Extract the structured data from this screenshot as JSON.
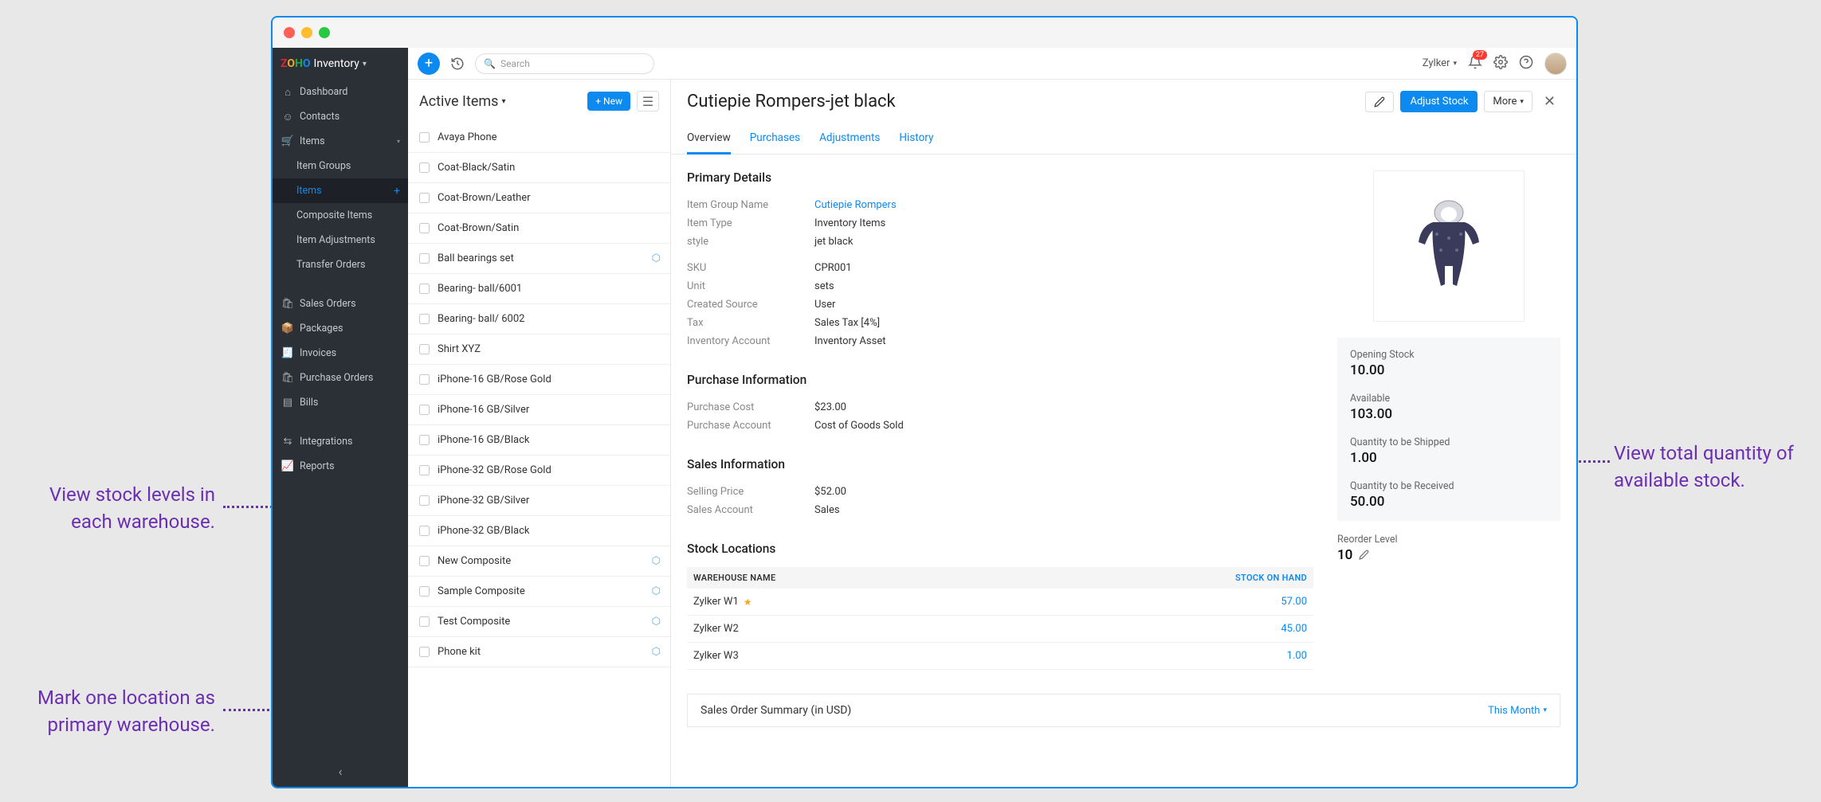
{
  "annotations": {
    "left1": "View stock levels in each warehouse.",
    "left2": "Mark one location as primary warehouse.",
    "right1": "View total quantity of available stock."
  },
  "brand": {
    "name": "Inventory"
  },
  "sidebar": {
    "dashboard": "Dashboard",
    "contacts": "Contacts",
    "items": "Items",
    "item_groups": "Item Groups",
    "items_sub": "Items",
    "composite": "Composite Items",
    "adjustments": "Item Adjustments",
    "transfer": "Transfer Orders",
    "sales_orders": "Sales Orders",
    "packages": "Packages",
    "invoices": "Invoices",
    "purchase_orders": "Purchase Orders",
    "bills": "Bills",
    "integrations": "Integrations",
    "reports": "Reports"
  },
  "topbar": {
    "search_placeholder": "Search",
    "org": "Zylker",
    "notif_count": "27"
  },
  "list": {
    "title": "Active Items",
    "new_btn": "+ New",
    "items": [
      {
        "name": "Avaya Phone",
        "composite": false
      },
      {
        "name": "Coat-Black/Satin",
        "composite": false
      },
      {
        "name": "Coat-Brown/Leather",
        "composite": false
      },
      {
        "name": "Coat-Brown/Satin",
        "composite": false
      },
      {
        "name": "Ball bearings set",
        "composite": true
      },
      {
        "name": "Bearing- ball/6001",
        "composite": false
      },
      {
        "name": "Bearing- ball/ 6002",
        "composite": false
      },
      {
        "name": "Shirt XYZ",
        "composite": false
      },
      {
        "name": "iPhone-16 GB/Rose Gold",
        "composite": false
      },
      {
        "name": "iPhone-16 GB/Silver",
        "composite": false
      },
      {
        "name": "iPhone-16 GB/Black",
        "composite": false
      },
      {
        "name": "iPhone-32 GB/Rose Gold",
        "composite": false
      },
      {
        "name": "iPhone-32 GB/Silver",
        "composite": false
      },
      {
        "name": "iPhone-32 GB/Black",
        "composite": false
      },
      {
        "name": "New Composite",
        "composite": true
      },
      {
        "name": "Sample Composite",
        "composite": true
      },
      {
        "name": "Test Composite",
        "composite": true
      },
      {
        "name": "Phone kit",
        "composite": true
      }
    ]
  },
  "detail": {
    "title": "Cutiepie Rompers-jet black",
    "adjust_btn": "Adjust Stock",
    "more_btn": "More",
    "tabs": {
      "overview": "Overview",
      "purchases": "Purchases",
      "adjustments": "Adjustments",
      "history": "History"
    },
    "primary_title": "Primary Details",
    "primary": {
      "group_label": "Item Group Name",
      "group_value": "Cutiepie Rompers",
      "type_label": "Item Type",
      "type_value": "Inventory Items",
      "style_label": "style",
      "style_value": "jet black",
      "sku_label": "SKU",
      "sku_value": "CPR001",
      "unit_label": "Unit",
      "unit_value": "sets",
      "source_label": "Created Source",
      "source_value": "User",
      "tax_label": "Tax",
      "tax_value": "Sales Tax [4%]",
      "inv_label": "Inventory Account",
      "inv_value": "Inventory Asset"
    },
    "purchase_title": "Purchase Information",
    "purchase": {
      "cost_label": "Purchase Cost",
      "cost_value": "$23.00",
      "acct_label": "Purchase Account",
      "acct_value": "Cost of Goods Sold"
    },
    "sales_title": "Sales Information",
    "sales": {
      "price_label": "Selling Price",
      "price_value": "$52.00",
      "acct_label": "Sales Account",
      "acct_value": "Sales"
    },
    "stock_loc_title": "Stock Locations",
    "stock_table": {
      "col1": "WAREHOUSE NAME",
      "col2": "STOCK ON HAND",
      "rows": [
        {
          "name": "Zylker W1",
          "primary": true,
          "soh": "57.00"
        },
        {
          "name": "Zylker W2",
          "primary": false,
          "soh": "45.00"
        },
        {
          "name": "Zylker W3",
          "primary": false,
          "soh": "1.00"
        }
      ]
    },
    "stock_card": {
      "opening_label": "Opening Stock",
      "opening_value": "10.00",
      "avail_label": "Available",
      "avail_value": "103.00",
      "ship_label": "Quantity to be Shipped",
      "ship_value": "1.00",
      "recv_label": "Quantity to be Received",
      "recv_value": "50.00"
    },
    "reorder_label": "Reorder Level",
    "reorder_value": "10",
    "summary_title": "Sales Order Summary (in USD)",
    "summary_period": "This Month"
  }
}
